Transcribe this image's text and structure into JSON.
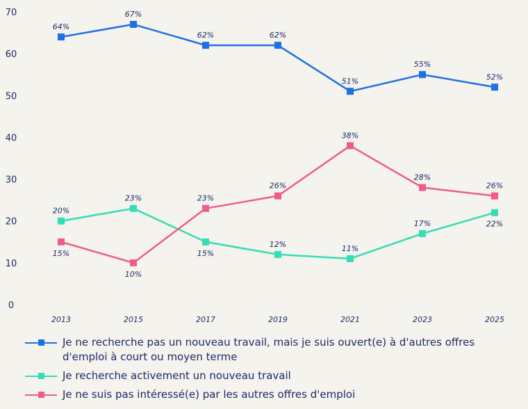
{
  "chart_data": {
    "type": "line",
    "x": [
      "2013",
      "2015",
      "2017",
      "2019",
      "2021",
      "2023",
      "2025"
    ],
    "ylim": [
      0,
      70
    ],
    "yticks": [
      0,
      10,
      20,
      30,
      40,
      50,
      60,
      70
    ],
    "grid": false,
    "legend_position": "bottom",
    "series": [
      {
        "name": "Je ne recherche pas un nouveau travail, mais je suis ouvert(e) à d'autres offres d'emploi à court ou moyen terme",
        "color": "#1f6fe5",
        "values": [
          64,
          67,
          62,
          62,
          51,
          55,
          52
        ],
        "labels": [
          "64%",
          "67%",
          "62%",
          "62%",
          "51%",
          "55%",
          "52%"
        ]
      },
      {
        "name": "Je recherche activement un nouveau travail",
        "color": "#33ddb5",
        "values": [
          20,
          23,
          15,
          12,
          11,
          17,
          22
        ],
        "labels": [
          "20%",
          "23%",
          "15%",
          "12%",
          "11%",
          "17%",
          "22%"
        ]
      },
      {
        "name": "Je ne suis pas intéressé(e) par les autres offres d'emploi",
        "color": "#ee5c8c",
        "values": [
          15,
          10,
          23,
          26,
          38,
          28,
          26
        ],
        "labels": [
          "15%",
          "10%",
          "23%",
          "26%",
          "38%",
          "28%",
          "26%"
        ]
      }
    ]
  }
}
